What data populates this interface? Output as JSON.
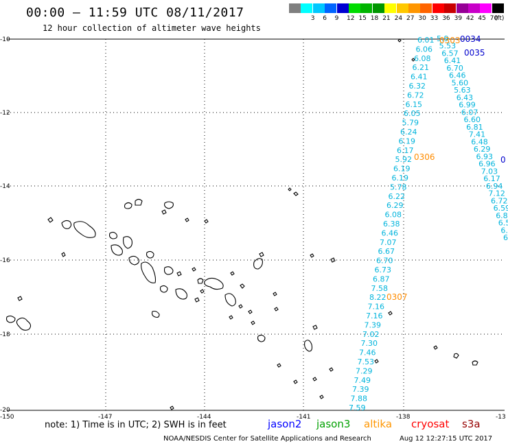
{
  "header": {
    "title": "00:00 — 11:59 UTC 08/11/2017",
    "subtitle": "12 hour collection of altimeter wave heights"
  },
  "legend": {
    "colors": [
      "#7f7f7f",
      "#00ffff",
      "#00c8ff",
      "#0064ff",
      "#0000d2",
      "#00dc00",
      "#00b400",
      "#009600",
      "#ffff00",
      "#ffc800",
      "#ff9600",
      "#ff6400",
      "#ff0000",
      "#c80000",
      "#960096",
      "#c800c8",
      "#ff00ff",
      "#000000"
    ],
    "ticks": [
      "3",
      "6",
      "9",
      "12",
      "15",
      "18",
      "21",
      "24",
      "27",
      "30",
      "33",
      "36",
      "39",
      "42",
      "45",
      "70"
    ],
    "unit": "(ft)"
  },
  "axes": {
    "y_labels": [
      "-10",
      "-12",
      "-14",
      "-16",
      "-18",
      "-20"
    ],
    "x_labels": [
      "-150",
      "-147",
      "-144",
      "-141",
      "-138",
      "-13"
    ]
  },
  "tracks": [
    {
      "name": "track-1",
      "color": "#00b4dc",
      "values": [
        "6.01",
        "6.06",
        "6.08",
        "6.21",
        "6.41",
        "6.32",
        "6.72",
        "6.15",
        "6.05",
        "5.79",
        "6.24",
        "6.19",
        "6.17",
        "5.92",
        "6.19",
        "6.19",
        "5.78",
        "6.22",
        "6.29",
        "6.08",
        "6.38",
        "6.46",
        "7.07",
        "6.67",
        "6.70",
        "6.73",
        "6.87",
        "7.58",
        "8.22",
        "7.16",
        "7.16",
        "7.39",
        "7.02",
        "7.30",
        "7.46",
        "7.53",
        "7.29",
        "7.49",
        "7.39",
        "7.88",
        "7.59"
      ]
    },
    {
      "name": "track-2",
      "color": "#00b4dc",
      "values": [
        "5.9",
        "5.53",
        "6.57",
        "6.41",
        "6.70",
        "6.46",
        "5.60",
        "5.63",
        "6.43",
        "6.99",
        "6.07",
        "6.60",
        "6.81",
        "7.41",
        "6.48",
        "6.29",
        "6.93",
        "6.96",
        "7.03",
        "6.17",
        "6.94",
        "7.12",
        "6.72",
        "6.59",
        "6.8",
        "6.5",
        "6.",
        "6."
      ]
    }
  ],
  "time_labels": [
    {
      "text": "0303",
      "color": "#ff8c00"
    },
    {
      "text": "0034",
      "color": "#0000cc"
    },
    {
      "text": "0035",
      "color": "#0000cc"
    },
    {
      "text": "0306",
      "color": "#ff8c00"
    },
    {
      "text": "0307",
      "color": "#ff8c00"
    },
    {
      "text": "0",
      "color": "#0000cc"
    }
  ],
  "footer": {
    "note": "note: 1) Time is in UTC; 2) SWH is in feet",
    "satellites": [
      {
        "name": "jason2",
        "color": "#0000ff"
      },
      {
        "name": "jason3",
        "color": "#00a000"
      },
      {
        "name": "altika",
        "color": "#ff9600"
      },
      {
        "name": "cryosat",
        "color": "#ff0000"
      },
      {
        "name": "s3a",
        "color": "#960000"
      }
    ],
    "credit": "NOAA/NESDIS Center for Satellite Applications and Research",
    "timestamp": "Aug 12 12:27:15 UTC 2017"
  }
}
